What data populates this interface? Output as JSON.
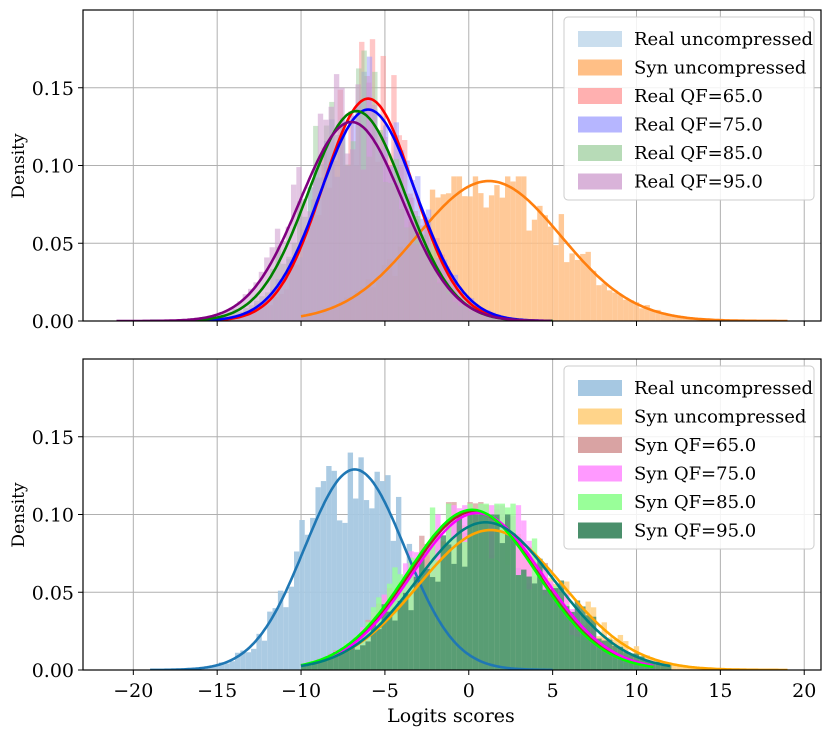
{
  "chart_data": [
    {
      "type": "histogram+kde",
      "title": "",
      "xlabel": "",
      "ylabel": "Density",
      "xlim": [
        -23,
        21
      ],
      "ylim": [
        0,
        0.2
      ],
      "xticks": [
        -20,
        -15,
        -10,
        -5,
        0,
        5,
        10,
        15,
        20
      ],
      "yticks": [
        0.0,
        0.05,
        0.1,
        0.15
      ],
      "ytick_labels": [
        "0.00",
        "0.05",
        "0.10",
        "0.15"
      ],
      "grid": true,
      "legend": "top-right",
      "series": [
        {
          "name": "Real uncompressed",
          "color": "#1f77b4",
          "fill_color": "#a6c8e2",
          "fill_opacity": 0.4,
          "mean": -6.5,
          "sd": 3.0,
          "peak": 0.128,
          "hist_range": [
            -15.5,
            -0.5
          ],
          "hist_max": 0.16,
          "kde_range": [
            -19,
            4
          ],
          "draw_hist": false,
          "draw_kde": false
        },
        {
          "name": "Syn uncompressed",
          "color": "#ff7f0e",
          "fill_color": "#ffbf86",
          "fill_opacity": 0.85,
          "mean": 1.2,
          "sd": 4.3,
          "peak": 0.09,
          "hist_range": [
            -10,
            19
          ],
          "hist_max": 0.093,
          "kde_range": [
            -10,
            19
          ],
          "draw_hist": true,
          "draw_kde": true
        },
        {
          "name": "Real QF=65.0",
          "color": "#ff0000",
          "fill_color": "#ff8f8f",
          "fill_opacity": 0.5,
          "mean": -6.0,
          "sd": 2.7,
          "peak": 0.143,
          "hist_range": [
            -15.5,
            2
          ],
          "hist_max": 0.19,
          "kde_range": [
            -19,
            5
          ],
          "draw_hist": true,
          "draw_kde": true
        },
        {
          "name": "Real QF=75.0",
          "color": "#0000ff",
          "fill_color": "#9797ff",
          "fill_opacity": 0.5,
          "mean": -6.0,
          "sd": 2.85,
          "peak": 0.136,
          "hist_range": [
            -16,
            2
          ],
          "hist_max": 0.17,
          "kde_range": [
            -19,
            5
          ],
          "draw_hist": true,
          "draw_kde": true
        },
        {
          "name": "Real QF=85.0",
          "color": "#008000",
          "fill_color": "#99cc99",
          "fill_opacity": 0.5,
          "mean": -6.7,
          "sd": 2.9,
          "peak": 0.135,
          "hist_range": [
            -16,
            1.5
          ],
          "hist_max": 0.175,
          "kde_range": [
            -19,
            5
          ],
          "draw_hist": true,
          "draw_kde": true
        },
        {
          "name": "Real QF=95.0",
          "color": "#800080",
          "fill_color": "#cc99cc",
          "fill_opacity": 0.55,
          "mean": -7.0,
          "sd": 3.05,
          "peak": 0.128,
          "hist_range": [
            -17,
            1.5
          ],
          "hist_max": 0.165,
          "kde_range": [
            -21,
            5
          ],
          "draw_hist": true,
          "draw_kde": true
        }
      ]
    },
    {
      "type": "histogram+kde",
      "title": "",
      "xlabel": "Logits scores",
      "ylabel": "Density",
      "xlim": [
        -23,
        21
      ],
      "ylim": [
        0,
        0.2
      ],
      "xticks": [
        -20,
        -15,
        -10,
        -5,
        0,
        5,
        10,
        15,
        20
      ],
      "xtick_labels": [
        "−20",
        "−15",
        "−10",
        "−5",
        "0",
        "5",
        "10",
        "15",
        "20"
      ],
      "yticks": [
        0.0,
        0.05,
        0.1,
        0.15
      ],
      "ytick_labels": [
        "0.00",
        "0.05",
        "0.10",
        "0.15"
      ],
      "grid": true,
      "legend": "top-right",
      "series": [
        {
          "name": "Real uncompressed",
          "color": "#1f77b4",
          "fill_color": "#a6c8e2",
          "fill_opacity": 0.95,
          "mean": -6.8,
          "sd": 3.0,
          "peak": 0.129,
          "hist_range": [
            -16.5,
            2
          ],
          "hist_max": 0.19,
          "kde_range": [
            -19,
            5
          ],
          "draw_hist": true,
          "draw_kde": true
        },
        {
          "name": "Syn uncompressed",
          "color": "#ffa500",
          "fill_color": "#ffd48a",
          "fill_opacity": 0.9,
          "mean": 1.3,
          "sd": 4.3,
          "peak": 0.09,
          "hist_range": [
            -10,
            19
          ],
          "hist_max": 0.093,
          "kde_range": [
            -10,
            19
          ],
          "draw_hist": true,
          "draw_kde": true
        },
        {
          "name": "Syn QF=65.0",
          "color": "#a52a2a",
          "fill_color": "#d9a3a3",
          "fill_opacity": 0.8,
          "mean": 0.3,
          "sd": 3.85,
          "peak": 0.102,
          "hist_range": [
            -10,
            11
          ],
          "hist_max": 0.108,
          "kde_range": [
            -10,
            11
          ],
          "draw_hist": true,
          "draw_kde": true
        },
        {
          "name": "Syn QF=75.0",
          "color": "#ff00ff",
          "fill_color": "#ff99ff",
          "fill_opacity": 0.8,
          "mean": 0.5,
          "sd": 3.9,
          "peak": 0.101,
          "hist_range": [
            -10,
            11
          ],
          "hist_max": 0.106,
          "kde_range": [
            -10,
            11
          ],
          "draw_hist": true,
          "draw_kde": true
        },
        {
          "name": "Syn QF=85.0",
          "color": "#00ff00",
          "fill_color": "#99ff99",
          "fill_opacity": 0.8,
          "mean": 0.2,
          "sd": 3.85,
          "peak": 0.103,
          "hist_range": [
            -10,
            11
          ],
          "hist_max": 0.107,
          "kde_range": [
            -10,
            11
          ],
          "draw_hist": true,
          "draw_kde": true
        },
        {
          "name": "Syn QF=95.0",
          "color": "#008080",
          "fill_color": "#4a8f6b",
          "fill_opacity": 0.85,
          "mean": 1.0,
          "sd": 4.1,
          "peak": 0.095,
          "hist_range": [
            -10,
            12
          ],
          "hist_max": 0.1,
          "kde_range": [
            -10,
            12
          ],
          "draw_hist": true,
          "draw_kde": true
        }
      ]
    }
  ]
}
